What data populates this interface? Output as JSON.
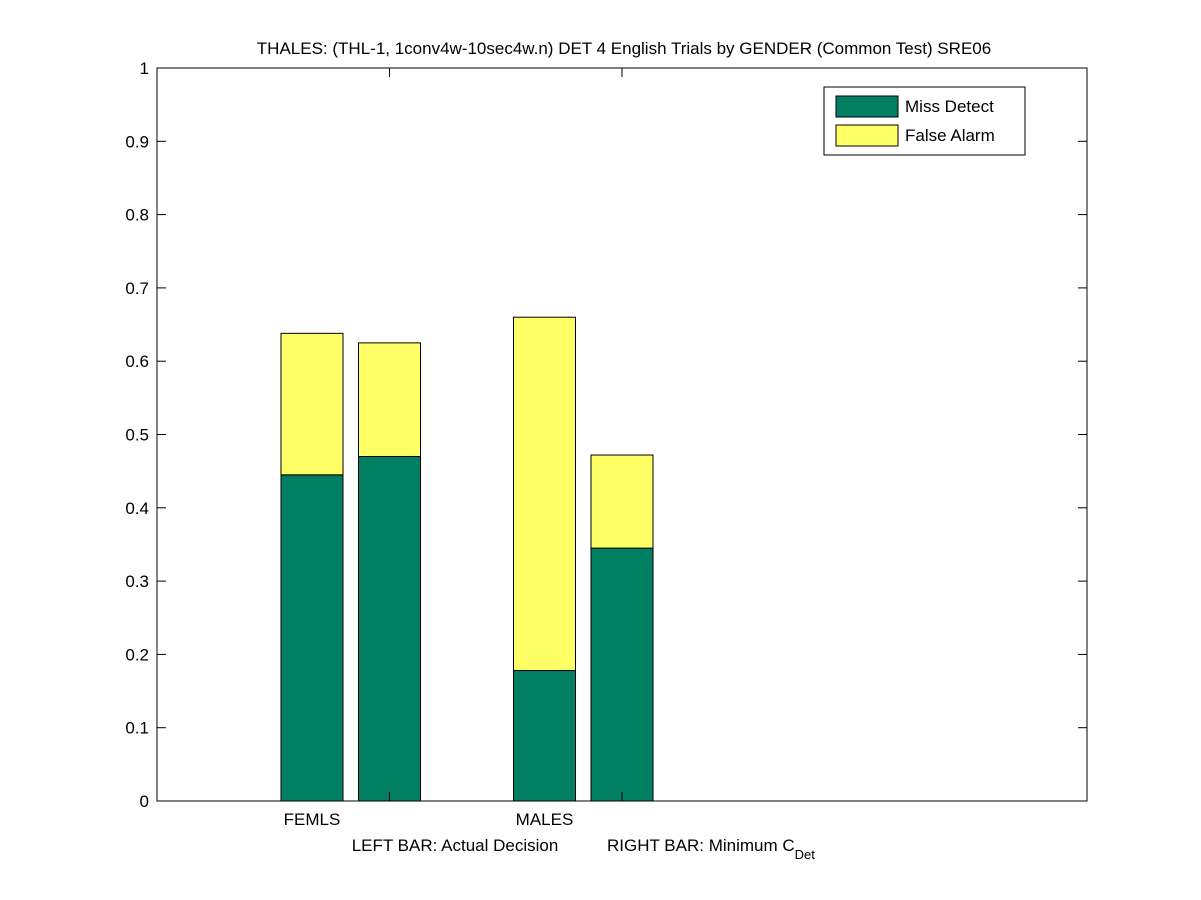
{
  "chart_data": {
    "type": "bar",
    "stacked": true,
    "title": "THALES: (THL-1, 1conv4w-10sec4w.n) DET 4 English Trials by GENDER (Common Test) SRE06",
    "xlabel_left": "LEFT BAR: Actual Decision",
    "xlabel_right": "RIGHT BAR: Minimum C",
    "xlabel_right_sub": "Det",
    "categories": [
      "FEMLS",
      "MALES"
    ],
    "ylim": [
      0,
      1
    ],
    "yticks": [
      0,
      0.1,
      0.2,
      0.3,
      0.4,
      0.5,
      0.6,
      0.7,
      0.8,
      0.9,
      1
    ],
    "ytick_labels": [
      "0",
      "0.1",
      "0.2",
      "0.3",
      "0.4",
      "0.5",
      "0.6",
      "0.7",
      "0.8",
      "0.9",
      "1"
    ],
    "bars_per_category": [
      "Actual Decision",
      "Minimum C_Det"
    ],
    "series": [
      {
        "name": "Miss Detect",
        "color": "#007f63",
        "values": [
          [
            0.445,
            0.47
          ],
          [
            0.178,
            0.345
          ]
        ]
      },
      {
        "name": "False Alarm",
        "color": "#ffff66",
        "values": [
          [
            0.193,
            0.155
          ],
          [
            0.482,
            0.127
          ]
        ]
      }
    ],
    "legend": {
      "placement": "top-right",
      "entries": [
        "Miss Detect",
        "False Alarm"
      ]
    },
    "grid": false
  }
}
